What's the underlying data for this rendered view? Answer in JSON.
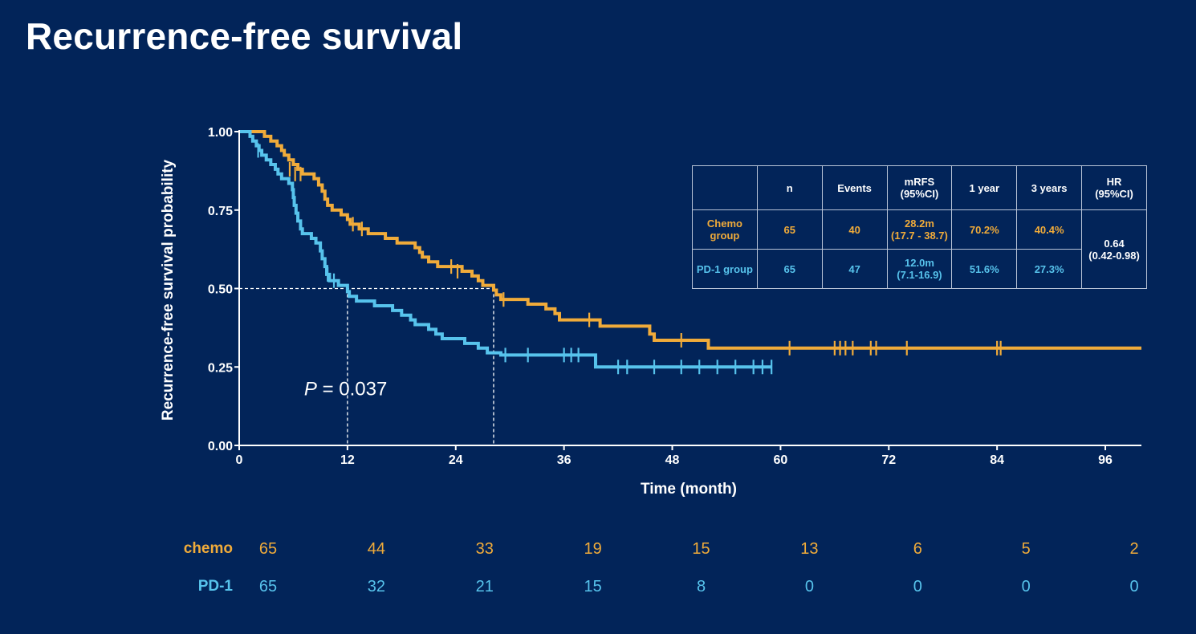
{
  "title": "Recurrence-free survival",
  "colors": {
    "background": "#022459",
    "chemo": "#f0ab3a",
    "pd1": "#57c3ec",
    "axis": "#ffffff"
  },
  "chart_data": {
    "type": "line",
    "subtype": "kaplan-meier-step",
    "xlabel": "Time (month)",
    "ylabel": "Recurrence-free survival probability",
    "xlim": [
      0,
      100
    ],
    "ylim": [
      0,
      1
    ],
    "xticks": [
      0,
      12,
      24,
      36,
      48,
      60,
      72,
      84,
      96
    ],
    "yticks": [
      0.0,
      0.25,
      0.5,
      0.75,
      1.0
    ],
    "ytick_labels": [
      "0.00",
      "0.25",
      "0.50",
      "0.75",
      "1.00"
    ],
    "pvalue": {
      "italic": "P",
      "text": " = 0.037",
      "x": 7.2,
      "y": 0.16
    },
    "median_lines": [
      {
        "x": 12.0,
        "y": 0.5
      },
      {
        "x": 28.2,
        "y": 0.5
      }
    ],
    "series": [
      {
        "group": "chemo",
        "steps": [
          [
            0,
            1.0
          ],
          [
            2.8,
            0.985
          ],
          [
            3.5,
            0.97
          ],
          [
            4.2,
            0.955
          ],
          [
            4.7,
            0.94
          ],
          [
            5.0,
            0.925
          ],
          [
            5.5,
            0.91
          ],
          [
            6.0,
            0.895
          ],
          [
            6.5,
            0.88
          ],
          [
            7.0,
            0.865
          ],
          [
            8.3,
            0.85
          ],
          [
            8.8,
            0.83
          ],
          [
            9.2,
            0.81
          ],
          [
            9.5,
            0.785
          ],
          [
            9.8,
            0.765
          ],
          [
            10.3,
            0.75
          ],
          [
            11.3,
            0.735
          ],
          [
            12.0,
            0.72
          ],
          [
            12.3,
            0.705
          ],
          [
            13.3,
            0.69
          ],
          [
            14.3,
            0.675
          ],
          [
            16.2,
            0.66
          ],
          [
            17.5,
            0.645
          ],
          [
            19.5,
            0.63
          ],
          [
            20.0,
            0.615
          ],
          [
            20.3,
            0.6
          ],
          [
            21.0,
            0.585
          ],
          [
            22.0,
            0.57
          ],
          [
            24.7,
            0.555
          ],
          [
            25.8,
            0.54
          ],
          [
            26.5,
            0.525
          ],
          [
            27.0,
            0.51
          ],
          [
            28.2,
            0.495
          ],
          [
            28.5,
            0.48
          ],
          [
            29.0,
            0.465
          ],
          [
            32.0,
            0.45
          ],
          [
            34.0,
            0.435
          ],
          [
            35.0,
            0.42
          ],
          [
            35.5,
            0.4
          ],
          [
            40.0,
            0.38
          ],
          [
            45.5,
            0.355
          ],
          [
            46.0,
            0.335
          ],
          [
            52.0,
            0.31
          ],
          [
            100,
            0.31
          ]
        ],
        "censors": [
          [
            5.6,
            0.88
          ],
          [
            6.2,
            0.865
          ],
          [
            6.8,
            0.865
          ],
          [
            12.6,
            0.705
          ],
          [
            13.6,
            0.69
          ],
          [
            23.5,
            0.57
          ],
          [
            24.2,
            0.555
          ],
          [
            29.3,
            0.465
          ],
          [
            38.8,
            0.4
          ],
          [
            49.0,
            0.335
          ],
          [
            61.0,
            0.31
          ],
          [
            66.0,
            0.31
          ],
          [
            66.6,
            0.31
          ],
          [
            67.2,
            0.31
          ],
          [
            68.0,
            0.31
          ],
          [
            70.0,
            0.31
          ],
          [
            70.6,
            0.31
          ],
          [
            74.0,
            0.31
          ],
          [
            84.0,
            0.31
          ],
          [
            84.4,
            0.31
          ]
        ]
      },
      {
        "group": "pd1",
        "steps": [
          [
            0,
            1.0
          ],
          [
            1.2,
            0.985
          ],
          [
            1.5,
            0.97
          ],
          [
            1.9,
            0.955
          ],
          [
            2.2,
            0.94
          ],
          [
            2.5,
            0.925
          ],
          [
            3.0,
            0.91
          ],
          [
            3.5,
            0.895
          ],
          [
            4.0,
            0.88
          ],
          [
            4.3,
            0.865
          ],
          [
            4.7,
            0.85
          ],
          [
            5.5,
            0.835
          ],
          [
            5.9,
            0.815
          ],
          [
            6.0,
            0.79
          ],
          [
            6.1,
            0.765
          ],
          [
            6.3,
            0.74
          ],
          [
            6.5,
            0.715
          ],
          [
            6.8,
            0.69
          ],
          [
            7.0,
            0.675
          ],
          [
            8.0,
            0.66
          ],
          [
            8.5,
            0.645
          ],
          [
            9.0,
            0.62
          ],
          [
            9.2,
            0.595
          ],
          [
            9.5,
            0.57
          ],
          [
            9.7,
            0.545
          ],
          [
            10.0,
            0.525
          ],
          [
            11.0,
            0.51
          ],
          [
            12.0,
            0.49
          ],
          [
            12.2,
            0.475
          ],
          [
            13.0,
            0.46
          ],
          [
            15.0,
            0.445
          ],
          [
            17.0,
            0.43
          ],
          [
            18.0,
            0.415
          ],
          [
            19.0,
            0.4
          ],
          [
            19.5,
            0.385
          ],
          [
            21.0,
            0.37
          ],
          [
            21.8,
            0.355
          ],
          [
            22.5,
            0.34
          ],
          [
            25.0,
            0.325
          ],
          [
            26.5,
            0.31
          ],
          [
            27.5,
            0.295
          ],
          [
            29.0,
            0.288
          ],
          [
            39.5,
            0.25
          ],
          [
            59.0,
            0.25
          ]
        ],
        "censors": [
          [
            2.1,
            0.94
          ],
          [
            9.8,
            0.545
          ],
          [
            10.5,
            0.525
          ],
          [
            29.5,
            0.288
          ],
          [
            32.0,
            0.288
          ],
          [
            36.0,
            0.288
          ],
          [
            36.8,
            0.288
          ],
          [
            37.6,
            0.288
          ],
          [
            42.0,
            0.25
          ],
          [
            43.0,
            0.25
          ],
          [
            46.0,
            0.25
          ],
          [
            49.0,
            0.25
          ],
          [
            51.0,
            0.25
          ],
          [
            53.0,
            0.25
          ],
          [
            55.0,
            0.25
          ],
          [
            57.0,
            0.25
          ],
          [
            58.0,
            0.25
          ],
          [
            59.0,
            0.25
          ]
        ]
      }
    ]
  },
  "summary_table": {
    "headers": [
      {
        "lines": [
          ""
        ]
      },
      {
        "lines": [
          "n"
        ]
      },
      {
        "lines": [
          "Events"
        ]
      },
      {
        "lines": [
          "mRFS",
          "(95%CI)"
        ]
      },
      {
        "lines": [
          "1 year"
        ]
      },
      {
        "lines": [
          "3 years"
        ]
      },
      {
        "lines": [
          "HR",
          "(95%CI)"
        ]
      }
    ],
    "rows": [
      {
        "group": "Chemo group",
        "n": "65",
        "events": "40",
        "mrfs": [
          "28.2m",
          "(17.7 - 38.7)"
        ],
        "year1": "70.2%",
        "year3": "40.4%"
      },
      {
        "group": "PD-1 group",
        "n": "65",
        "events": "47",
        "mrfs": [
          "12.0m",
          "(7.1-16.9)"
        ],
        "year1": "51.6%",
        "year3": "27.3%"
      }
    ],
    "hr": [
      "0.64",
      "(0.42-0.98)"
    ]
  },
  "risk_table": {
    "time_points": [
      0,
      12,
      24,
      36,
      48,
      60,
      72,
      84,
      96
    ],
    "rows": [
      {
        "label": "chemo",
        "counts": [
          "65",
          "44",
          "33",
          "19",
          "15",
          "13",
          "6",
          "5",
          "2"
        ]
      },
      {
        "label": "PD-1",
        "counts": [
          "65",
          "32",
          "21",
          "15",
          "8",
          "0",
          "0",
          "0",
          "0"
        ]
      }
    ]
  }
}
